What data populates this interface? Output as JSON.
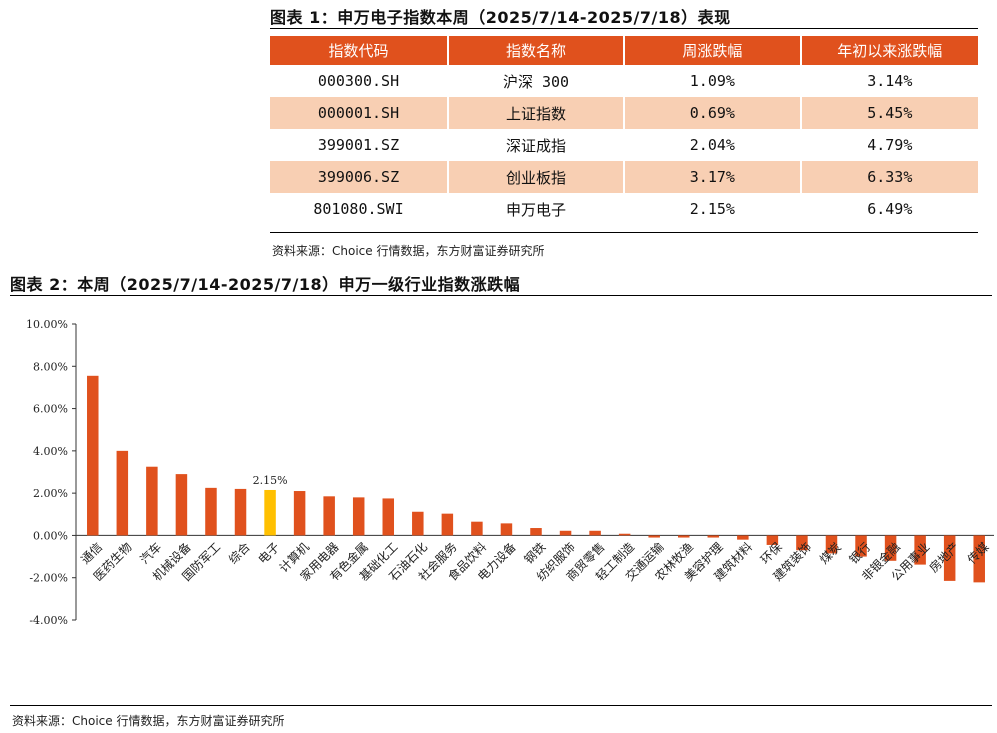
{
  "table": {
    "title": "图表 1：申万电子指数本周（2025/7/14-2025/7/18）表现",
    "headers": [
      "指数代码",
      "指数名称",
      "周涨跌幅",
      "年初以来涨跌幅"
    ],
    "rows": [
      [
        "000300.SH",
        "沪深 300",
        "1.09%",
        "3.14%"
      ],
      [
        "000001.SH",
        "上证指数",
        "0.69%",
        "5.45%"
      ],
      [
        "399001.SZ",
        "深证成指",
        "2.04%",
        "4.79%"
      ],
      [
        "399006.SZ",
        "创业板指",
        "3.17%",
        "6.33%"
      ],
      [
        "801080.SWI",
        "申万电子",
        "2.15%",
        "6.49%"
      ]
    ],
    "source": "资料来源：Choice 行情数据，东方财富证券研究所"
  },
  "chart": {
    "title": "图表 2：本周（2025/7/14-2025/7/18）申万一级行业指数涨跌幅",
    "source": "资料来源：Choice 行情数据，东方财富证券研究所"
  },
  "colors": {
    "bar": "#e0511d",
    "highlight": "#ffc000",
    "header": "#e0511d",
    "alt_row": "#f8cfb3"
  },
  "chart_data": {
    "type": "bar",
    "title": "本周（2025/7/14-2025/7/18）申万一级行业指数涨跌幅",
    "categories": [
      "通信",
      "医药生物",
      "汽车",
      "机械设备",
      "国防军工",
      "综合",
      "电子",
      "计算机",
      "家用电器",
      "有色金属",
      "基础化工",
      "石油石化",
      "社会服务",
      "食品饮料",
      "电力设备",
      "钢铁",
      "纺织服饰",
      "商贸零售",
      "轻工制造",
      "交通运输",
      "农林牧渔",
      "美容护理",
      "建筑材料",
      "环保",
      "建筑装饰",
      "煤炭",
      "银行",
      "非银金融",
      "公用事业",
      "房地产",
      "传媒"
    ],
    "values": [
      7.55,
      4.0,
      3.25,
      2.9,
      2.25,
      2.2,
      2.15,
      2.1,
      1.85,
      1.8,
      1.75,
      1.12,
      1.03,
      0.65,
      0.57,
      0.35,
      0.22,
      0.22,
      0.08,
      -0.1,
      -0.1,
      -0.1,
      -0.2,
      -0.45,
      -0.7,
      -0.85,
      -1.0,
      -1.2,
      -1.38,
      -2.15,
      -2.22
    ],
    "highlight_category": "电子",
    "data_labels": [
      {
        "category": "电子",
        "text": "2.15%"
      }
    ],
    "ylim": [
      -4,
      10
    ],
    "yticks": [
      "-4.00%",
      "-2.00%",
      "0.00%",
      "2.00%",
      "4.00%",
      "6.00%",
      "8.00%",
      "10.00%"
    ],
    "xlabel": "",
    "ylabel": "",
    "grid": false
  }
}
